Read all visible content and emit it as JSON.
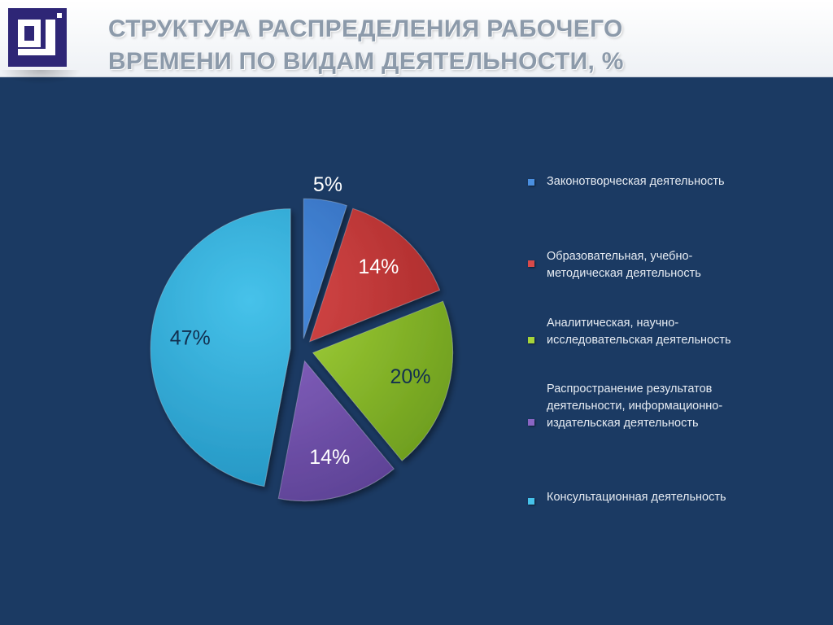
{
  "header": {
    "title_line1": "СТРУКТУРА РАСПРЕДЕЛЕНИЯ РАБОЧЕГО",
    "title_line2": "ВРЕМЕНИ ПО ВИДАМ ДЕЯТЕЛЬНОСТИ, %"
  },
  "colors": {
    "background": "#1b3a63",
    "title": "#8c9aaa",
    "logo": "#2e2676"
  },
  "chart_data": {
    "type": "pie",
    "title": "СТРУКТУРА РАСПРЕДЕЛЕНИЯ РАБОЧЕГО ВРЕМЕНИ ПО ВИДАМ ДЕЯТЕЛЬНОСТИ, %",
    "legend_position": "right",
    "slices": [
      {
        "name": "Законотворческая деятельность",
        "value": 5,
        "label": "5%",
        "color": "#4a8fe0",
        "color_dark": "#2a5fae"
      },
      {
        "name": "Образовательная, учебно-методическая деятельность",
        "value": 14,
        "label": "14%",
        "color": "#d84a4a",
        "color_dark": "#a42626"
      },
      {
        "name": "Аналитическая, научно-исследовательская деятельность",
        "value": 20,
        "label": "20%",
        "color": "#a6d43a",
        "color_dark": "#6a9a1c"
      },
      {
        "name": "Распространение результатов деятельности, информационно-издательская деятельность",
        "value": 14,
        "label": "14%",
        "color": "#8a66c4",
        "color_dark": "#5a3f92"
      },
      {
        "name": "Консультационная деятельность",
        "value": 47,
        "label": "47%",
        "color": "#46c2ea",
        "color_dark": "#2090be"
      }
    ]
  },
  "legend": {
    "items": [
      {
        "lines": [
          "Законотворческая деятельность"
        ]
      },
      {
        "lines": [
          "Образовательная, учебно-",
          "методическая деятельность"
        ]
      },
      {
        "lines": [
          "Аналитическая, научно-",
          "исследовательская деятельность"
        ]
      },
      {
        "lines": [
          "Распространение результатов",
          "деятельности, информационно-",
          "издательская деятельность"
        ]
      },
      {
        "lines": [
          "Консультационная деятельность"
        ]
      }
    ]
  }
}
